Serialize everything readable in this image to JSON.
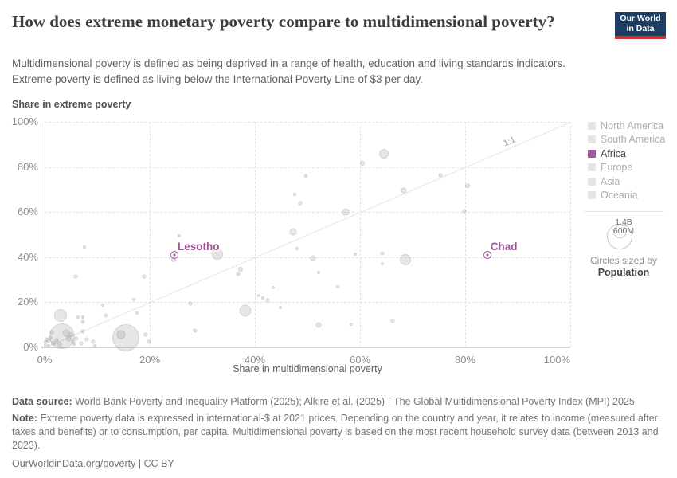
{
  "header": {
    "title": "How does extreme monetary poverty compare to multidimensional poverty?",
    "subtitle_line1": "Multidimensional poverty is defined as being deprived in a range of health, education and living standards indicators.",
    "subtitle_line2": "Extreme poverty is defined as living below the International Poverty Line of $3 per day.",
    "logo": {
      "line1": "Our World",
      "line2": "in Data",
      "bg_color": "#1d3d63",
      "bar_color": "#cc3633"
    }
  },
  "chart_data": {
    "type": "scatter",
    "x_axis": {
      "title": "Share in multidimensional poverty",
      "range": [
        0,
        100
      ],
      "tick_values": [
        0,
        20,
        40,
        60,
        80,
        100
      ],
      "tick_labels": [
        "0%",
        "20%",
        "40%",
        "60%",
        "80%",
        "100%"
      ],
      "grid": true
    },
    "y_axis": {
      "title": "Share in extreme poverty",
      "range": [
        0,
        100
      ],
      "tick_values": [
        0,
        20,
        40,
        60,
        80,
        100
      ],
      "tick_labels": [
        "0%",
        "20%",
        "40%",
        "60%",
        "80%",
        "100%"
      ],
      "grid": true
    },
    "reference_line": {
      "label": "1:1",
      "from": [
        0,
        0
      ],
      "to": [
        100,
        100
      ]
    },
    "point_color": "#e0e0e0",
    "points_format": "[share_multidimensional_pct, share_extreme_pct, radius_px]",
    "points": [
      [
        0.2,
        2.3,
        2
      ],
      [
        0.4,
        3.6,
        2.5
      ],
      [
        0.1,
        1.2,
        2
      ],
      [
        0.7,
        0.6,
        2
      ],
      [
        0.8,
        2.9,
        2.5
      ],
      [
        1.1,
        4.2,
        2.5
      ],
      [
        1.7,
        1.9,
        3
      ],
      [
        2.3,
        3.1,
        2.5
      ],
      [
        2.9,
        1.3,
        3
      ],
      [
        1.3,
        6.6,
        2.5
      ],
      [
        3.3,
        4.8,
        16
      ],
      [
        4.1,
        6.4,
        4.5
      ],
      [
        5.0,
        5.8,
        3
      ],
      [
        3.0,
        14.1,
        8
      ],
      [
        4.6,
        3.8,
        3.5
      ],
      [
        5.4,
        2.6,
        2.5
      ],
      [
        6.0,
        3.8,
        2.5
      ],
      [
        5.6,
        1.5,
        2
      ],
      [
        6.9,
        1.7,
        2.5
      ],
      [
        7.2,
        7.0,
        2.5
      ],
      [
        8.0,
        3.5,
        2.5
      ],
      [
        9.2,
        2.5,
        2.5
      ],
      [
        7.3,
        11.4,
        2.5
      ],
      [
        7.3,
        13.5,
        2
      ],
      [
        9.6,
        0.6,
        2
      ],
      [
        11.6,
        14.3,
        2.5
      ],
      [
        11.0,
        18.9,
        2
      ],
      [
        6.3,
        13.3,
        2
      ],
      [
        15.5,
        4.1,
        17
      ],
      [
        14.6,
        5.8,
        5.5
      ],
      [
        19.3,
        5.5,
        2.5
      ],
      [
        19.8,
        2.3,
        2.5
      ],
      [
        5.9,
        31.3,
        2.5
      ],
      [
        7.5,
        44.5,
        2
      ],
      [
        19.0,
        31.5,
        2.5
      ],
      [
        17.0,
        21.3,
        2
      ],
      [
        17.6,
        15.3,
        2
      ],
      [
        27.7,
        19.4,
        2.5
      ],
      [
        28.7,
        7.4,
        2.5
      ],
      [
        24.5,
        38.8,
        3
      ],
      [
        25.6,
        49.5,
        2
      ],
      [
        32.9,
        41.5,
        7
      ],
      [
        36.8,
        32.5,
        2.5
      ],
      [
        37.3,
        34.8,
        3
      ],
      [
        38.2,
        16.4,
        7.5
      ],
      [
        40.8,
        23.0,
        2
      ],
      [
        41.5,
        21.9,
        2
      ],
      [
        42.4,
        20.9,
        2.5
      ],
      [
        43.5,
        26.5,
        2
      ],
      [
        44.8,
        17.8,
        2
      ],
      [
        47.2,
        51.3,
        4.5
      ],
      [
        47.6,
        68.0,
        2
      ],
      [
        48.6,
        64.0,
        2.5
      ],
      [
        49.7,
        76.0,
        2.5
      ],
      [
        48.1,
        43.8,
        2
      ],
      [
        51.1,
        39.7,
        3.5
      ],
      [
        52.1,
        33.2,
        2
      ],
      [
        52.1,
        10.0,
        3.5
      ],
      [
        55.8,
        26.9,
        2
      ],
      [
        57.2,
        60.0,
        4.5
      ],
      [
        58.3,
        10.3,
        2
      ],
      [
        59.1,
        41.2,
        2
      ],
      [
        60.4,
        81.6,
        3
      ],
      [
        64.5,
        86.0,
        6
      ],
      [
        64.3,
        41.6,
        2.5
      ],
      [
        64.3,
        37.0,
        2
      ],
      [
        66.2,
        11.8,
        2.5
      ],
      [
        68.4,
        69.5,
        3.5
      ],
      [
        68.6,
        38.8,
        7
      ],
      [
        75.3,
        76.2,
        2.5
      ],
      [
        80.5,
        71.6,
        3
      ],
      [
        79.8,
        60.3,
        2.5
      ]
    ],
    "highlighted_points": [
      {
        "label": "Lesotho",
        "x": 24.7,
        "y": 41,
        "color": "#a2559c"
      },
      {
        "label": "Chad",
        "x": 84.2,
        "y": 41,
        "color": "#a2559c"
      }
    ]
  },
  "legend": {
    "items": [
      {
        "label": "North America",
        "color": "#e5e5e5",
        "muted": true
      },
      {
        "label": "South America",
        "color": "#e5e5e5",
        "muted": true
      },
      {
        "label": "Africa",
        "color": "#a2559c",
        "muted": false
      },
      {
        "label": "Europe",
        "color": "#e5e5e5",
        "muted": true
      },
      {
        "label": "Asia",
        "color": "#e5e5e5",
        "muted": true
      },
      {
        "label": "Oceania",
        "color": "#e5e5e5",
        "muted": true
      }
    ],
    "muted_text_color": "#adadad",
    "active_text_color": "#454545",
    "size_legend": {
      "big_label": "1.4B",
      "small_label": "600M",
      "caption": "Circles sized by",
      "caption_bold": "Population"
    }
  },
  "footer": {
    "source_label": "Data source:",
    "source_text": "World Bank Poverty and Inequality Platform (2025); Alkire et al. (2025) - The Global Multidimensional Poverty Index (MPI) 2025",
    "note_label": "Note:",
    "note_text": "Extreme poverty data is expressed in international-$ at 2021 prices. Depending on the country and year, it relates to income (measured after taxes and benefits) or to consumption, per capita. Multidimensional poverty is based on the most recent household survey data (between 2013 and 2023).",
    "link": "OurWorldinData.org/poverty | CC BY"
  }
}
